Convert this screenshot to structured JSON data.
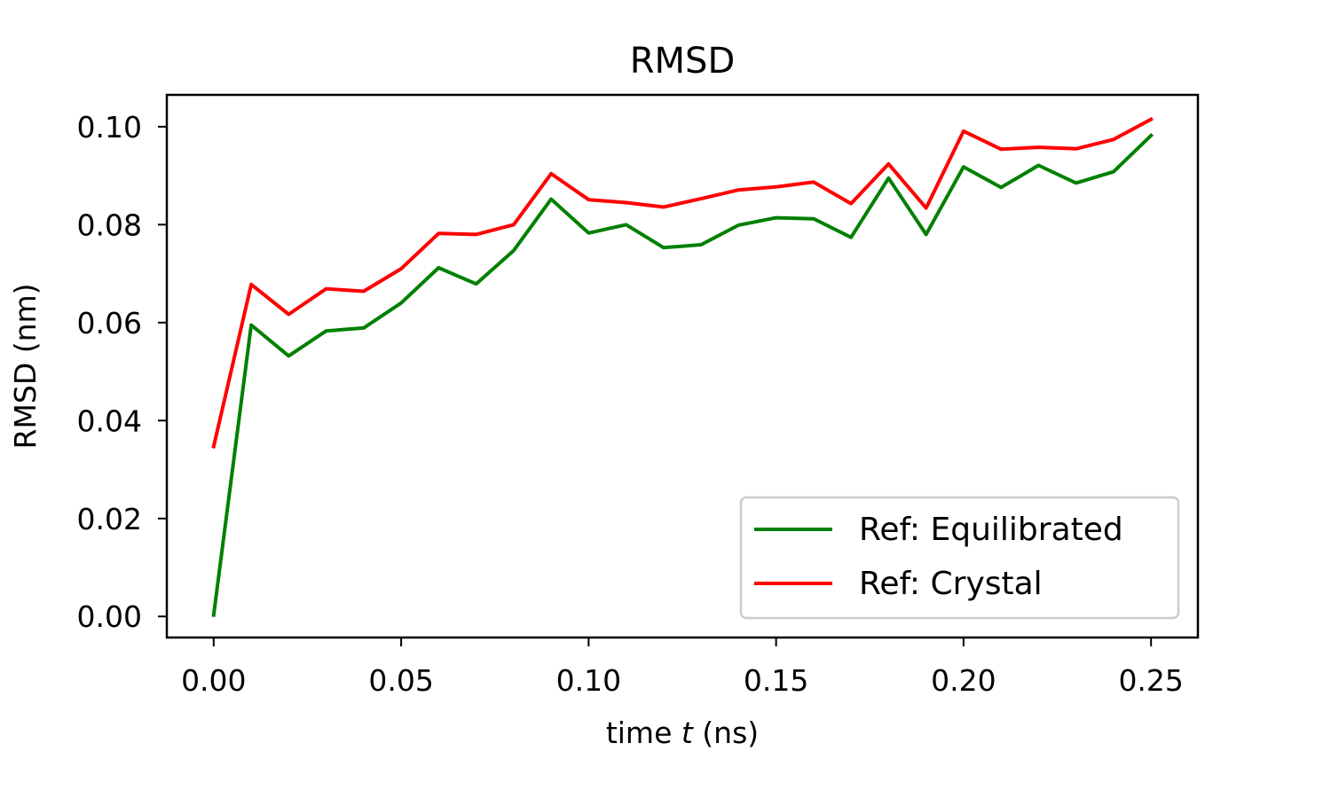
{
  "chart_data": {
    "type": "line",
    "title": "RMSD",
    "xlabel_prefix": "time ",
    "xlabel_var": "t",
    "xlabel_suffix": " (ns)",
    "ylabel": "RMSD (nm)",
    "xlim": [
      -0.0125,
      0.2625
    ],
    "ylim": [
      -0.0043,
      0.1065
    ],
    "x_ticks": [
      "0.00",
      "0.05",
      "0.10",
      "0.15",
      "0.20",
      "0.25"
    ],
    "y_ticks": [
      "0.00",
      "0.02",
      "0.04",
      "0.06",
      "0.08",
      "0.10"
    ],
    "x": [
      0.0,
      0.01,
      0.02,
      0.03,
      0.04,
      0.05,
      0.06,
      0.07,
      0.08,
      0.09,
      0.1,
      0.11,
      0.12,
      0.13,
      0.14,
      0.15,
      0.16,
      0.17,
      0.18,
      0.19,
      0.2,
      0.21,
      0.22,
      0.23,
      0.24,
      0.25
    ],
    "series": [
      {
        "name": "Ref: Equilibrated",
        "color": "#008000",
        "values": [
          0.0003,
          0.0595,
          0.0532,
          0.0583,
          0.0589,
          0.064,
          0.0712,
          0.0679,
          0.0747,
          0.0852,
          0.0783,
          0.08,
          0.0753,
          0.0759,
          0.0799,
          0.0814,
          0.0812,
          0.0774,
          0.0895,
          0.078,
          0.0918,
          0.0876,
          0.0921,
          0.0885,
          0.0908,
          0.0982
        ]
      },
      {
        "name": "Ref: Crystal",
        "color": "#ff0000",
        "values": [
          0.0347,
          0.0678,
          0.0617,
          0.0669,
          0.0664,
          0.071,
          0.0782,
          0.078,
          0.08,
          0.0904,
          0.0851,
          0.0845,
          0.0836,
          0.0853,
          0.0871,
          0.0877,
          0.0887,
          0.0843,
          0.0924,
          0.0834,
          0.0991,
          0.0954,
          0.0958,
          0.0955,
          0.0974,
          0.1015
        ]
      }
    ],
    "grid": false,
    "legend_position": "lower right"
  }
}
